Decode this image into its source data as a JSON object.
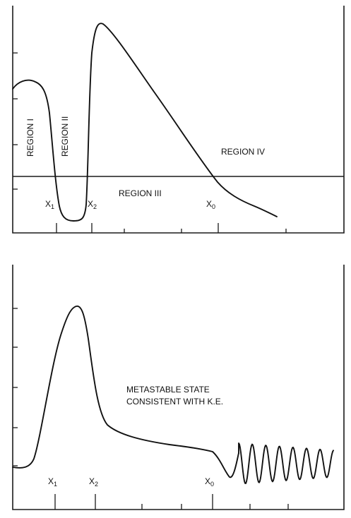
{
  "top_panel": {
    "region_labels": {
      "r1": "REGION I",
      "r2": "REGION II",
      "r3": "REGION III",
      "r4": "REGION IV"
    },
    "x_markers": [
      {
        "base": "X",
        "sub": "1"
      },
      {
        "base": "X",
        "sub": "2"
      },
      {
        "base": "X",
        "sub": "0"
      }
    ]
  },
  "bottom_panel": {
    "annotation_line1": "METASTABLE STATE",
    "annotation_line2": "CONSISTENT WITH  K.E.",
    "x_markers": [
      {
        "base": "X",
        "sub": "1"
      },
      {
        "base": "X",
        "sub": "2"
      },
      {
        "base": "X",
        "sub": "0"
      }
    ]
  }
}
